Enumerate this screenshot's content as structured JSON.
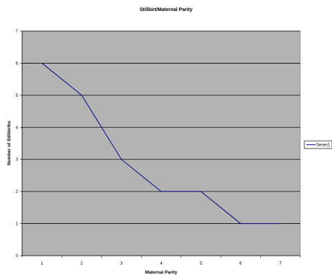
{
  "chart_data": {
    "type": "line",
    "title": "Stillbirt/Maternal Parity",
    "xlabel": "Maternal Parity",
    "ylabel": "Number of Stillbirths",
    "categories": [
      "1",
      "2",
      "3",
      "4",
      "5",
      "6",
      "7"
    ],
    "series": [
      {
        "name": "Series1",
        "values": [
          6,
          5,
          3,
          2,
          2,
          1,
          1
        ],
        "color": "#000080"
      }
    ],
    "ylim": [
      0,
      7
    ],
    "yticks": [
      "0",
      "1",
      "2",
      "3",
      "4",
      "5",
      "6",
      "7"
    ],
    "grid": true,
    "legend": "right",
    "colors": {
      "plot_background": "#b3b3b3",
      "gridline": "#000000"
    }
  }
}
